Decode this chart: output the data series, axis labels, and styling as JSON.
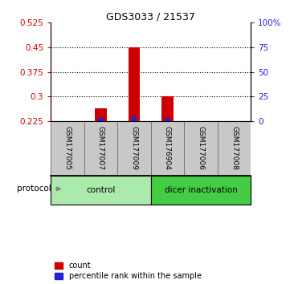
{
  "title": "GDS3033 / 21537",
  "samples": [
    "GSM177005",
    "GSM177007",
    "GSM177009",
    "GSM176904",
    "GSM177006",
    "GSM177008"
  ],
  "ylim_left": [
    0.225,
    0.525
  ],
  "ylim_right": [
    0,
    100
  ],
  "yticks_left": [
    0.225,
    0.3,
    0.375,
    0.45,
    0.525
  ],
  "yticks_right": [
    0,
    25,
    50,
    75,
    100
  ],
  "ytick_labels_right": [
    "0",
    "25",
    "50",
    "75",
    "100%"
  ],
  "bar_base": 0.225,
  "red_bar_tops": [
    0.225,
    0.265,
    0.45,
    0.3,
    0.225,
    0.225
  ],
  "blue_bar_pcts": [
    0.0,
    3.0,
    5.0,
    3.5,
    0.0,
    0.0
  ],
  "red_color": "#CC0000",
  "blue_color": "#2222CC",
  "red_bar_width": 0.35,
  "blue_bar_width": 0.15,
  "left_tick_color": "#CC0000",
  "right_tick_color": "#2222CC",
  "grid_yticks_pct": [
    25,
    50,
    75
  ],
  "control_color": "#AAEAAA",
  "dicer_color": "#44CC44",
  "sample_bg_color": "#C8C8C8",
  "n_control": 3,
  "n_dicer": 3,
  "protocol_label": "protocol",
  "legend_count_label": "count",
  "legend_pct_label": "percentile rank within the sample"
}
